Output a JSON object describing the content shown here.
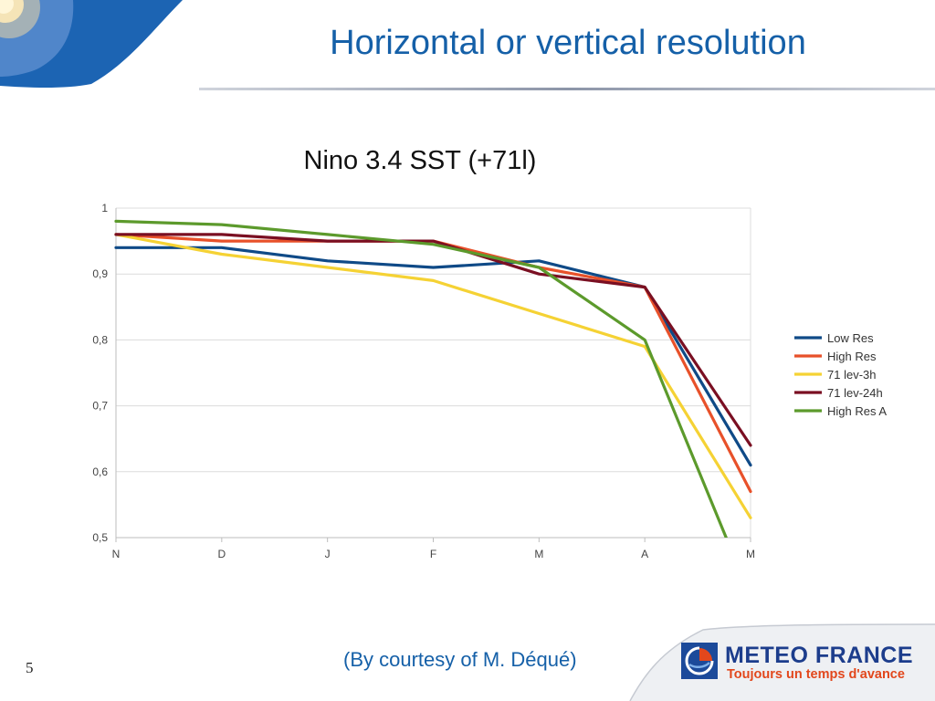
{
  "slide": {
    "title": "Horizontal or vertical resolution",
    "credit": "(By courtesy of M. Déqué)",
    "page_number": "5"
  },
  "logo": {
    "name": "METEO FRANCE",
    "tagline": "Toujours un temps d'avance"
  },
  "chart_data": {
    "type": "line",
    "title": "Nino 3.4 SST (+71l)",
    "xlabel": "",
    "ylabel": "",
    "categories": [
      "N",
      "D",
      "J",
      "F",
      "M",
      "A",
      "M"
    ],
    "ylim": [
      0.5,
      1
    ],
    "yticks": [
      "0,5",
      "0,6",
      "0,7",
      "0,8",
      "0,9",
      "1"
    ],
    "ytick_values": [
      0.5,
      0.6,
      0.7,
      0.8,
      0.9,
      1.0
    ],
    "grid": true,
    "legend_position": "right",
    "series": [
      {
        "name": "Low Res",
        "color": "#0f4a87",
        "values": [
          0.94,
          0.94,
          0.92,
          0.91,
          0.92,
          0.88,
          0.61
        ]
      },
      {
        "name": "High Res",
        "color": "#e8512a",
        "values": [
          0.96,
          0.95,
          0.95,
          0.95,
          0.91,
          0.88,
          0.57
        ]
      },
      {
        "name": "71 lev-3h",
        "color": "#f5d234",
        "values": [
          0.96,
          0.93,
          0.91,
          0.89,
          0.84,
          0.79,
          0.53
        ]
      },
      {
        "name": "71 lev-24h",
        "color": "#7a0f22",
        "values": [
          0.96,
          0.96,
          0.95,
          0.95,
          0.9,
          0.88,
          0.64
        ]
      },
      {
        "name": "High Res A",
        "color": "#5c9a2c",
        "values": [
          0.98,
          0.975,
          0.96,
          0.945,
          0.91,
          0.8,
          0.41
        ]
      }
    ]
  }
}
